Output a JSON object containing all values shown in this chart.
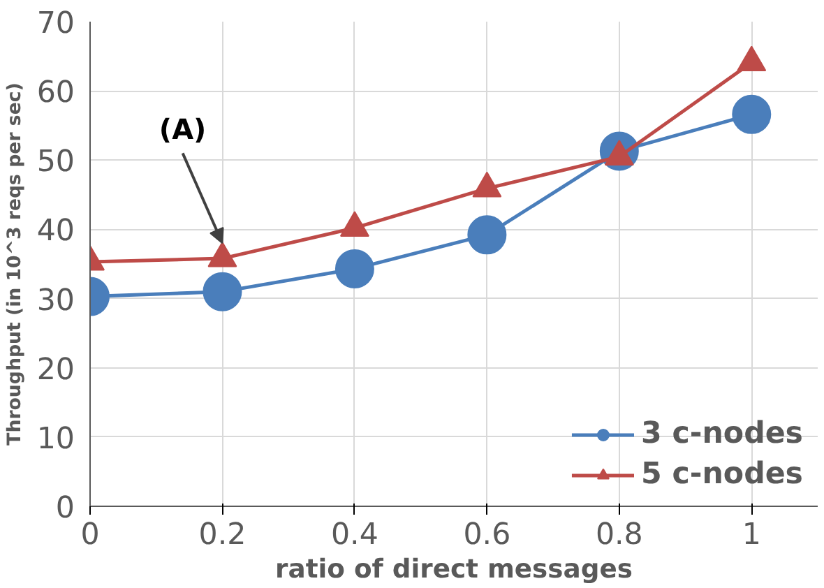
{
  "chart_data": {
    "type": "line",
    "xlabel": "ratio of direct messages",
    "ylabel": "Throughput (in 10^3 reqs per sec)",
    "x": [
      0,
      0.2,
      0.4,
      0.6,
      0.8,
      1
    ],
    "series": [
      {
        "name": "3 c-nodes",
        "color": "#4a7ebb",
        "marker": "circle",
        "values": [
          30.3,
          31.0,
          34.3,
          39.2,
          51.3,
          56.6
        ]
      },
      {
        "name": "5 c-nodes",
        "color": "#be4b48",
        "marker": "triangle",
        "values": [
          35.3,
          35.8,
          40.2,
          45.9,
          50.5,
          64.1
        ]
      }
    ],
    "xlim": [
      0,
      1.1
    ],
    "ylim": [
      0,
      70
    ],
    "xticks": [
      0,
      0.2,
      0.4,
      0.6,
      0.8,
      1
    ],
    "yticks": [
      0,
      10,
      20,
      30,
      40,
      50,
      60,
      70
    ],
    "grid": true,
    "legend": "bottom right",
    "line_style": "solid",
    "annotations": [
      {
        "text": "(A)",
        "x": 0.2,
        "y": 38
      }
    ]
  }
}
